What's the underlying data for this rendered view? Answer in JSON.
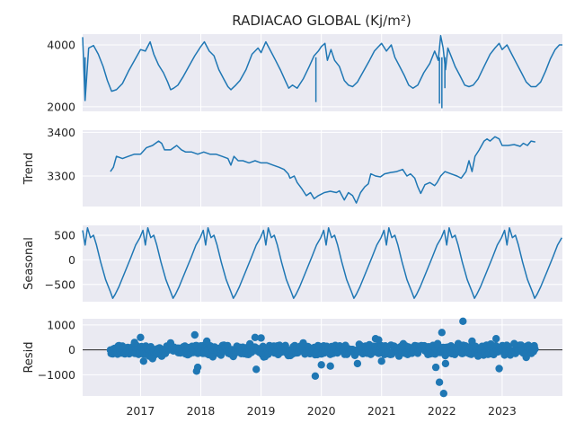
{
  "chart_data": {
    "type": "line",
    "title": "RADIACAO GLOBAL (Kj/m²)",
    "xlabel": "",
    "x_tick_labels": [
      "2017",
      "2018",
      "2019",
      "2020",
      "2021",
      "2022",
      "2023"
    ],
    "xlim": [
      2016.04,
      2024.0
    ],
    "grid": true,
    "line_color": "#1f77b4",
    "panels": [
      {
        "name": "observed",
        "type": "line",
        "ylabel": "",
        "ylim": [
          1850,
          4350
        ],
        "yticks": [
          2000,
          4000
        ],
        "points": [
          [
            2016.04,
            4250
          ],
          [
            2016.08,
            2200
          ],
          [
            2016.14,
            3900
          ],
          [
            2016.22,
            3980
          ],
          [
            2016.3,
            3700
          ],
          [
            2016.38,
            3300
          ],
          [
            2016.45,
            2850
          ],
          [
            2016.52,
            2500
          ],
          [
            2016.6,
            2550
          ],
          [
            2016.7,
            2750
          ],
          [
            2016.8,
            3150
          ],
          [
            2016.9,
            3500
          ],
          [
            2017.0,
            3850
          ],
          [
            2017.08,
            3800
          ],
          [
            2017.16,
            4100
          ],
          [
            2017.22,
            3700
          ],
          [
            2017.3,
            3350
          ],
          [
            2017.38,
            3100
          ],
          [
            2017.45,
            2800
          ],
          [
            2017.5,
            2550
          ],
          [
            2017.55,
            2600
          ],
          [
            2017.62,
            2700
          ],
          [
            2017.7,
            2950
          ],
          [
            2017.8,
            3300
          ],
          [
            2017.9,
            3650
          ],
          [
            2018.0,
            3950
          ],
          [
            2018.06,
            4100
          ],
          [
            2018.14,
            3800
          ],
          [
            2018.22,
            3650
          ],
          [
            2018.3,
            3200
          ],
          [
            2018.38,
            2900
          ],
          [
            2018.45,
            2650
          ],
          [
            2018.5,
            2550
          ],
          [
            2018.58,
            2700
          ],
          [
            2018.65,
            2850
          ],
          [
            2018.75,
            3200
          ],
          [
            2018.85,
            3700
          ],
          [
            2018.95,
            3900
          ],
          [
            2019.0,
            3750
          ],
          [
            2019.08,
            4100
          ],
          [
            2019.16,
            3800
          ],
          [
            2019.24,
            3500
          ],
          [
            2019.32,
            3200
          ],
          [
            2019.4,
            2850
          ],
          [
            2019.46,
            2600
          ],
          [
            2019.52,
            2700
          ],
          [
            2019.6,
            2600
          ],
          [
            2019.7,
            2900
          ],
          [
            2019.8,
            3300
          ],
          [
            2019.88,
            3650
          ],
          [
            2019.95,
            3800
          ],
          [
            2020.0,
            3950
          ],
          [
            2020.06,
            4050
          ],
          [
            2020.1,
            3500
          ],
          [
            2020.16,
            3850
          ],
          [
            2020.22,
            3500
          ],
          [
            2020.3,
            3300
          ],
          [
            2020.38,
            2850
          ],
          [
            2020.45,
            2700
          ],
          [
            2020.52,
            2650
          ],
          [
            2020.6,
            2800
          ],
          [
            2020.7,
            3150
          ],
          [
            2020.8,
            3500
          ],
          [
            2020.88,
            3800
          ],
          [
            2020.95,
            3950
          ],
          [
            2021.0,
            4050
          ],
          [
            2021.08,
            3800
          ],
          [
            2021.16,
            4000
          ],
          [
            2021.22,
            3600
          ],
          [
            2021.3,
            3300
          ],
          [
            2021.38,
            3000
          ],
          [
            2021.45,
            2700
          ],
          [
            2021.52,
            2600
          ],
          [
            2021.6,
            2700
          ],
          [
            2021.7,
            3100
          ],
          [
            2021.8,
            3400
          ],
          [
            2021.88,
            3800
          ],
          [
            2021.94,
            3500
          ],
          [
            2021.98,
            4300
          ],
          [
            2022.02,
            3900
          ],
          [
            2022.06,
            3200
          ],
          [
            2022.1,
            3900
          ],
          [
            2022.16,
            3600
          ],
          [
            2022.22,
            3300
          ],
          [
            2022.3,
            3000
          ],
          [
            2022.38,
            2700
          ],
          [
            2022.45,
            2650
          ],
          [
            2022.52,
            2700
          ],
          [
            2022.6,
            2900
          ],
          [
            2022.7,
            3300
          ],
          [
            2022.8,
            3700
          ],
          [
            2022.88,
            3900
          ],
          [
            2022.95,
            4050
          ],
          [
            2023.0,
            3850
          ],
          [
            2023.08,
            4000
          ],
          [
            2023.16,
            3700
          ],
          [
            2023.24,
            3400
          ],
          [
            2023.32,
            3100
          ],
          [
            2023.4,
            2800
          ],
          [
            2023.48,
            2650
          ],
          [
            2023.56,
            2650
          ],
          [
            2023.64,
            2800
          ],
          [
            2023.72,
            3150
          ],
          [
            2023.8,
            3550
          ],
          [
            2023.88,
            3850
          ],
          [
            2023.95,
            4000
          ],
          [
            2024.0,
            4000
          ]
        ],
        "dips": [
          [
            2016.08,
            2200
          ],
          [
            2019.91,
            2150
          ],
          [
            2021.96,
            2100
          ],
          [
            2022.0,
            1950
          ],
          [
            2022.05,
            2600
          ]
        ]
      },
      {
        "name": "trend",
        "type": "line",
        "ylabel": "Trend",
        "ylim": [
          3230,
          3405
        ],
        "yticks": [
          3300,
          3400
        ],
        "points": [
          [
            2016.5,
            3310
          ],
          [
            2016.55,
            3320
          ],
          [
            2016.6,
            3345
          ],
          [
            2016.7,
            3340
          ],
          [
            2016.8,
            3345
          ],
          [
            2016.9,
            3350
          ],
          [
            2017.0,
            3350
          ],
          [
            2017.1,
            3365
          ],
          [
            2017.2,
            3370
          ],
          [
            2017.3,
            3380
          ],
          [
            2017.35,
            3375
          ],
          [
            2017.4,
            3360
          ],
          [
            2017.5,
            3360
          ],
          [
            2017.6,
            3370
          ],
          [
            2017.68,
            3360
          ],
          [
            2017.75,
            3355
          ],
          [
            2017.85,
            3355
          ],
          [
            2017.95,
            3350
          ],
          [
            2018.05,
            3355
          ],
          [
            2018.15,
            3350
          ],
          [
            2018.25,
            3350
          ],
          [
            2018.35,
            3345
          ],
          [
            2018.45,
            3340
          ],
          [
            2018.5,
            3325
          ],
          [
            2018.55,
            3345
          ],
          [
            2018.62,
            3335
          ],
          [
            2018.7,
            3335
          ],
          [
            2018.8,
            3330
          ],
          [
            2018.9,
            3335
          ],
          [
            2019.0,
            3330
          ],
          [
            2019.1,
            3330
          ],
          [
            2019.2,
            3325
          ],
          [
            2019.3,
            3320
          ],
          [
            2019.38,
            3315
          ],
          [
            2019.45,
            3305
          ],
          [
            2019.48,
            3295
          ],
          [
            2019.55,
            3300
          ],
          [
            2019.6,
            3285
          ],
          [
            2019.68,
            3270
          ],
          [
            2019.75,
            3255
          ],
          [
            2019.82,
            3262
          ],
          [
            2019.88,
            3248
          ],
          [
            2019.95,
            3255
          ],
          [
            2020.05,
            3262
          ],
          [
            2020.15,
            3265
          ],
          [
            2020.25,
            3262
          ],
          [
            2020.3,
            3266
          ],
          [
            2020.38,
            3245
          ],
          [
            2020.45,
            3262
          ],
          [
            2020.52,
            3255
          ],
          [
            2020.58,
            3238
          ],
          [
            2020.65,
            3262
          ],
          [
            2020.72,
            3275
          ],
          [
            2020.78,
            3282
          ],
          [
            2020.82,
            3305
          ],
          [
            2020.9,
            3300
          ],
          [
            2020.98,
            3298
          ],
          [
            2021.05,
            3305
          ],
          [
            2021.15,
            3308
          ],
          [
            2021.25,
            3310
          ],
          [
            2021.35,
            3315
          ],
          [
            2021.42,
            3300
          ],
          [
            2021.48,
            3305
          ],
          [
            2021.55,
            3295
          ],
          [
            2021.6,
            3275
          ],
          [
            2021.65,
            3260
          ],
          [
            2021.72,
            3280
          ],
          [
            2021.8,
            3285
          ],
          [
            2021.88,
            3278
          ],
          [
            2021.92,
            3285
          ],
          [
            2021.98,
            3300
          ],
          [
            2022.05,
            3310
          ],
          [
            2022.15,
            3305
          ],
          [
            2022.25,
            3300
          ],
          [
            2022.32,
            3295
          ],
          [
            2022.4,
            3310
          ],
          [
            2022.45,
            3335
          ],
          [
            2022.5,
            3310
          ],
          [
            2022.55,
            3345
          ],
          [
            2022.62,
            3360
          ],
          [
            2022.7,
            3380
          ],
          [
            2022.75,
            3385
          ],
          [
            2022.8,
            3380
          ],
          [
            2022.88,
            3390
          ],
          [
            2022.95,
            3385
          ],
          [
            2023.0,
            3370
          ],
          [
            2023.1,
            3370
          ],
          [
            2023.2,
            3372
          ],
          [
            2023.3,
            3368
          ],
          [
            2023.35,
            3375
          ],
          [
            2023.42,
            3370
          ],
          [
            2023.48,
            3380
          ],
          [
            2023.55,
            3378
          ]
        ]
      },
      {
        "name": "seasonal",
        "type": "line",
        "ylabel": "Seasonal",
        "ylim": [
          -850,
          700
        ],
        "yticks": [
          500,
          0,
          -500
        ],
        "cycle_start": 2016.04,
        "cycle_points": [
          [
            0.0,
            600
          ],
          [
            0.04,
            300
          ],
          [
            0.08,
            650
          ],
          [
            0.13,
            450
          ],
          [
            0.18,
            500
          ],
          [
            0.23,
            300
          ],
          [
            0.3,
            -50
          ],
          [
            0.38,
            -400
          ],
          [
            0.46,
            -650
          ],
          [
            0.5,
            -780
          ],
          [
            0.54,
            -700
          ],
          [
            0.6,
            -550
          ],
          [
            0.7,
            -250
          ],
          [
            0.8,
            50
          ],
          [
            0.88,
            300
          ],
          [
            0.95,
            450
          ],
          [
            1.0,
            600
          ]
        ]
      },
      {
        "name": "resid",
        "type": "scatter",
        "ylabel": "Resid",
        "ylim": [
          -1850,
          1250
        ],
        "yticks": [
          1000,
          0,
          -1000
        ],
        "zero_line": true,
        "band": [
          2016.5,
          2023.55
        ],
        "outliers": [
          [
            2016.7,
            150
          ],
          [
            2016.9,
            300
          ],
          [
            2017.0,
            500
          ],
          [
            2017.05,
            -450
          ],
          [
            2017.2,
            -350
          ],
          [
            2017.5,
            280
          ],
          [
            2017.9,
            600
          ],
          [
            2017.93,
            -850
          ],
          [
            2017.95,
            -700
          ],
          [
            2018.1,
            350
          ],
          [
            2018.2,
            -280
          ],
          [
            2018.9,
            500
          ],
          [
            2018.92,
            -780
          ],
          [
            2019.0,
            480
          ],
          [
            2019.7,
            280
          ],
          [
            2019.9,
            -1050
          ],
          [
            2020.0,
            -600
          ],
          [
            2020.15,
            -650
          ],
          [
            2020.6,
            -550
          ],
          [
            2020.9,
            450
          ],
          [
            2020.95,
            400
          ],
          [
            2021.0,
            -450
          ],
          [
            2021.9,
            -700
          ],
          [
            2021.93,
            250
          ],
          [
            2021.96,
            -1300
          ],
          [
            2022.0,
            700
          ],
          [
            2022.03,
            -1750
          ],
          [
            2022.06,
            -550
          ],
          [
            2022.35,
            1150
          ],
          [
            2022.5,
            350
          ],
          [
            2022.6,
            -250
          ],
          [
            2022.9,
            450
          ],
          [
            2022.95,
            -750
          ],
          [
            2023.2,
            250
          ],
          [
            2023.4,
            -300
          ]
        ]
      }
    ]
  }
}
